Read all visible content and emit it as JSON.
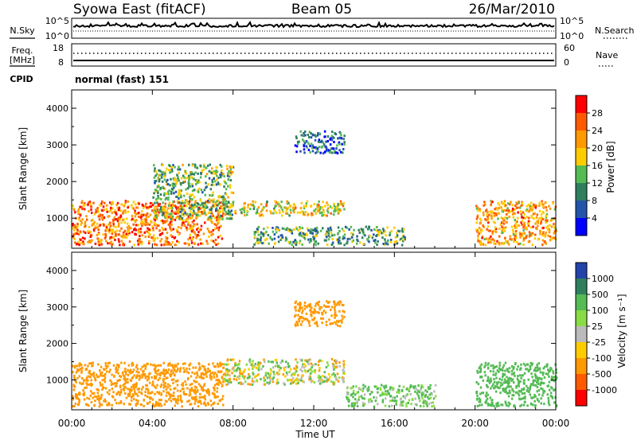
{
  "header": {
    "station": "Syowa East (fitACF)",
    "beam": "Beam 05",
    "date": "26/Mar/2010"
  },
  "noise_panel": {
    "left_label": "N.Sky",
    "right_label": "N.Search",
    "left_ticks": [
      "10^5",
      "10^0"
    ],
    "right_ticks": [
      "10^5",
      "10^0"
    ]
  },
  "freq_panel": {
    "left_label_line1": "Freq.",
    "left_label_line2": "[MHz]",
    "left_ticks": [
      "18",
      "8"
    ],
    "right_ticks": [
      "60",
      "0"
    ],
    "right_label": "Nave"
  },
  "cpid_panel": {
    "label": "CPID",
    "text": "normal (fast) 151"
  },
  "axes": {
    "y_label": "Slant Range [km]",
    "y_ticks": [
      "4000",
      "3000",
      "2000",
      "1000"
    ],
    "x_ticks": [
      "00:00",
      "04:00",
      "08:00",
      "12:00",
      "16:00",
      "20:00",
      "00:00"
    ],
    "x_label": "Time UT"
  },
  "colorbars": {
    "power": {
      "label": "Power [dB]",
      "ticks": [
        "28",
        "24",
        "20",
        "16",
        "12",
        "8",
        "4"
      ],
      "colors": [
        "#ff0000",
        "#ff5a00",
        "#ff9900",
        "#ffcc00",
        "#55bb55",
        "#2f7f5f",
        "#2255aa",
        "#0000ff"
      ]
    },
    "velocity": {
      "label": "Velocity [m s⁻¹]",
      "ticks": [
        "1000",
        "500",
        "100",
        "25",
        "-25",
        "-100",
        "-500",
        "-1000"
      ],
      "colors": [
        "#2244aa",
        "#2f7f5f",
        "#55bb55",
        "#88dd44",
        "#bbbbbb",
        "#ffcc00",
        "#ff9900",
        "#ff5a00",
        "#ff0000"
      ]
    }
  },
  "chart_data": [
    {
      "type": "heatmap",
      "name": "power",
      "x": [
        "00:00",
        "04:00",
        "08:00",
        "12:00",
        "16:00",
        "20:00",
        "00:00"
      ],
      "xlim": [
        0,
        24
      ],
      "ylim": [
        180,
        4500
      ],
      "xlabel": "Time UT",
      "ylabel": "Slant Range [km]",
      "zlabel": "Power [dB]",
      "zlim": [
        0,
        32
      ],
      "regions": [
        {
          "t": [
            0,
            7.5
          ],
          "r": [
            300,
            1500
          ],
          "z": 24
        },
        {
          "t": [
            4,
            8
          ],
          "r": [
            1000,
            2500
          ],
          "z": 14
        },
        {
          "t": [
            7.5,
            13.5
          ],
          "r": [
            1100,
            1500
          ],
          "z": 18
        },
        {
          "t": [
            9,
            16.5
          ],
          "r": [
            300,
            800
          ],
          "z": 12
        },
        {
          "t": [
            11,
            13.5
          ],
          "r": [
            2800,
            3400
          ],
          "z": 8
        },
        {
          "t": [
            20,
            24
          ],
          "r": [
            300,
            1500
          ],
          "z": 22
        }
      ]
    },
    {
      "type": "heatmap",
      "name": "velocity",
      "x": [
        "00:00",
        "04:00",
        "08:00",
        "12:00",
        "16:00",
        "20:00",
        "00:00"
      ],
      "xlim": [
        0,
        24
      ],
      "ylim": [
        180,
        4500
      ],
      "xlabel": "Time UT",
      "ylabel": "Slant Range [km]",
      "zlabel": "Velocity [m s⁻¹]",
      "zlim": [
        -1000,
        1000
      ],
      "regions": [
        {
          "t": [
            0,
            7.5
          ],
          "r": [
            300,
            1500
          ],
          "z": -300
        },
        {
          "t": [
            7.5,
            13.5
          ],
          "r": [
            900,
            1600
          ],
          "z": 0
        },
        {
          "t": [
            11,
            13.5
          ],
          "r": [
            2500,
            3200
          ],
          "z": -300
        },
        {
          "t": [
            13.5,
            18
          ],
          "r": [
            300,
            900
          ],
          "z": 150
        },
        {
          "t": [
            20,
            24
          ],
          "r": [
            300,
            1500
          ],
          "z": 300
        }
      ]
    }
  ]
}
